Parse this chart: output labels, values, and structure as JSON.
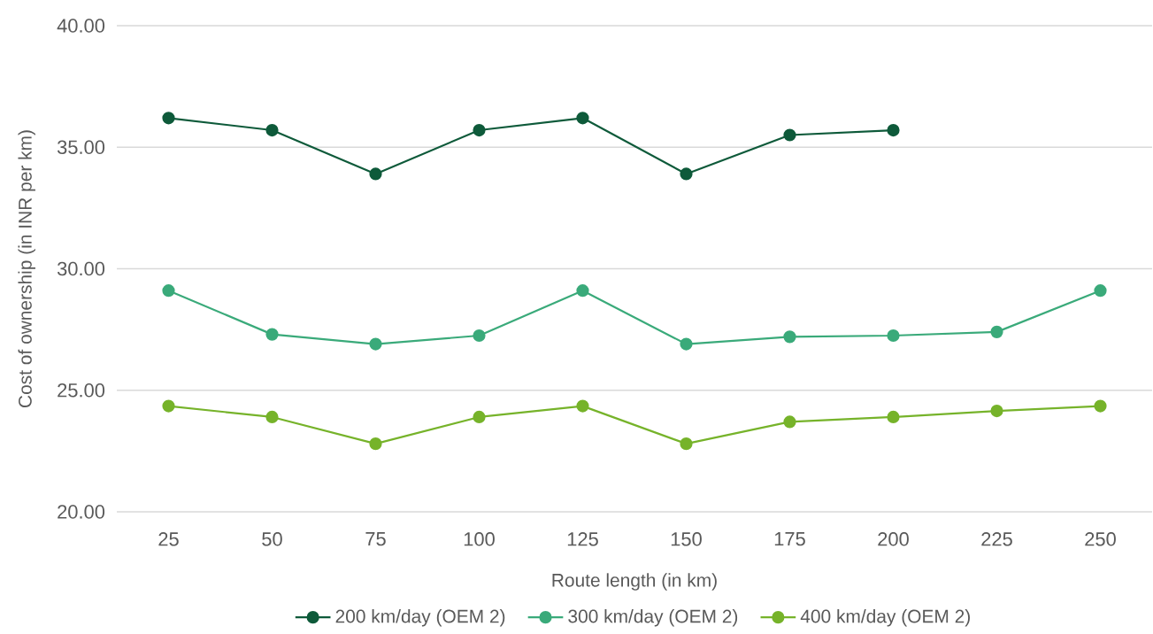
{
  "chart_data": {
    "type": "line",
    "xlabel": "Route length (in km)",
    "ylabel": "Cost of ownership (in INR per km)",
    "categories": [
      "25",
      "50",
      "75",
      "100",
      "125",
      "150",
      "175",
      "200",
      "225",
      "250"
    ],
    "series": [
      {
        "name": "200 km/day (OEM 2)",
        "color": "#0e5a3a",
        "values": [
          36.2,
          35.7,
          33.9,
          35.7,
          36.2,
          33.9,
          35.5,
          35.7,
          null,
          null
        ]
      },
      {
        "name": "300 km/day (OEM 2)",
        "color": "#3aaa7a",
        "values": [
          29.1,
          27.3,
          26.9,
          27.25,
          29.1,
          26.9,
          27.2,
          27.25,
          27.4,
          29.1
        ]
      },
      {
        "name": "400 km/day (OEM 2)",
        "color": "#76b32a",
        "values": [
          24.35,
          23.9,
          22.8,
          23.9,
          24.35,
          22.8,
          23.7,
          23.9,
          24.15,
          24.35
        ]
      }
    ],
    "ylim": [
      20,
      40
    ],
    "yticks": [
      {
        "value": 20,
        "label": "20.00"
      },
      {
        "value": 25,
        "label": "25.00"
      },
      {
        "value": 30,
        "label": "30.00"
      },
      {
        "value": 35,
        "label": "35.00"
      },
      {
        "value": 40,
        "label": "40.00"
      }
    ],
    "grid": "y",
    "legend": "bottom",
    "marker": "circle",
    "line_style": "solid"
  }
}
